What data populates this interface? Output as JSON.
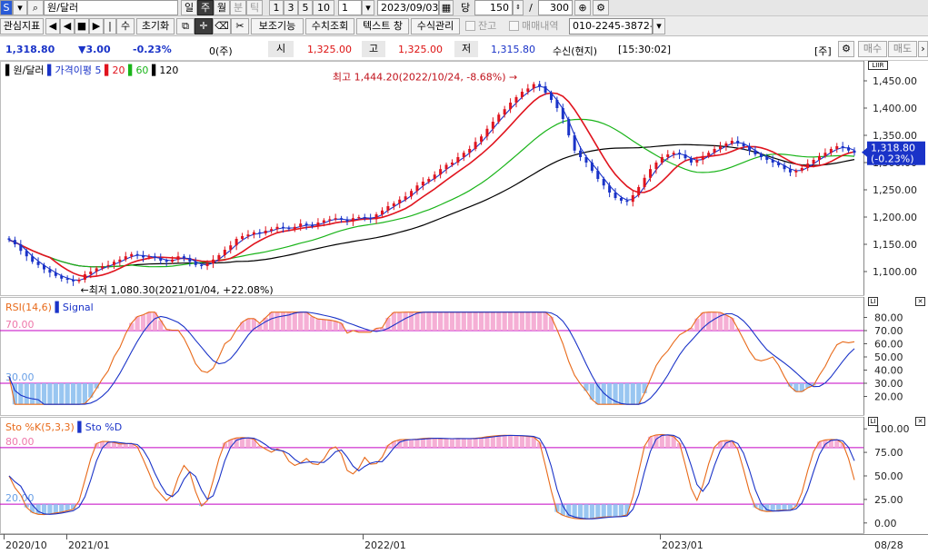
{
  "toolbar1": {
    "left_icon": "S",
    "symbol_value": "원/달러",
    "period_buttons": [
      "일",
      "주",
      "월",
      "분",
      "틱"
    ],
    "interval_buttons": [
      "1",
      "3",
      "5",
      "10"
    ],
    "interval_value": "1",
    "date_value": "2023/09/03",
    "calendar_icon": "calendar-icon",
    "dang_label": "당",
    "count_value": "150",
    "slash": "/",
    "max_value": "300",
    "zoom_icon": "zoom-icon",
    "settings_icon": "gear-icon"
  },
  "toolbar2": {
    "interest_label": "관심지표",
    "nav_first": "◀",
    "nav_prev": "◀",
    "nav_stop": "■",
    "nav_next": "▶",
    "nav_sep": "|",
    "su_label": "수",
    "reset_label": "초기화",
    "assist_label": "보조기능",
    "numeric_label": "수치조회",
    "text_label": "텍스트 창",
    "numeric_manage_label": "수식관리",
    "check1": "잔고",
    "check2": "매매내역",
    "account_value": "010-2245-3872-0"
  },
  "price_bar": {
    "current": "1,318.80",
    "change": "▼3.00",
    "change_pct": "-0.23%",
    "volume": "0(주)",
    "open_label": "시",
    "open": "1,325.00",
    "high_label": "고",
    "high": "1,325.00",
    "low_label": "저",
    "low": "1,315.80",
    "status": "수신(현지)",
    "time": "[15:30:02]",
    "unit": "[주]",
    "buy_label": "매수",
    "sell_label": "매도"
  },
  "price_panel": {
    "legend_name": "원/달러",
    "legend_ma_label": "가격이평",
    "ma_periods": [
      "5",
      "20",
      "60",
      "120"
    ],
    "ma_colors": [
      "#1a33c8",
      "#e0141e",
      "#19b419",
      "#000000"
    ],
    "y_ticks": [
      "1,450.00",
      "1,400.00",
      "1,350.00",
      "1,300.00",
      "1,250.00",
      "1,200.00",
      "1,150.00",
      "1,100.00"
    ],
    "current_tag": "1,318.80",
    "current_tag_pct": "(-0.23%)",
    "high_annot": "최고 1,444.20(2022/10/24, -8.68%)",
    "low_annot": "최저 1,080.30(2021/01/04, +22.08%)",
    "scale_btn": "LIIR"
  },
  "rsi_panel": {
    "legend_name": "RSI(14,6)",
    "legend_signal": "Signal",
    "level_high": "70.00",
    "level_low": "30.00",
    "y_ticks": [
      "80.00",
      "70.00",
      "60.00",
      "50.00",
      "40.00",
      "30.00",
      "20.00"
    ]
  },
  "sto_panel": {
    "legend_k": "Sto %K(5,3,3)",
    "legend_d": "Sto %D",
    "level_high": "80.00",
    "level_low": "20.00",
    "y_ticks": [
      "100.00",
      "75.00",
      "50.00",
      "25.00",
      "0.00"
    ]
  },
  "x_axis": {
    "labels": [
      "2020/10",
      "2021/01",
      "2022/01",
      "2023/01"
    ],
    "last_label": "08/28"
  },
  "chart_data": {
    "type": "candlestick",
    "period": "weekly",
    "x_start": "2020/10",
    "x_end": "2023/08/28",
    "close": [
      1158,
      1150,
      1138,
      1128,
      1118,
      1112,
      1104,
      1098,
      1092,
      1087,
      1085,
      1082,
      1085,
      1095,
      1100,
      1106,
      1110,
      1112,
      1118,
      1122,
      1128,
      1132,
      1130,
      1126,
      1128,
      1125,
      1120,
      1118,
      1122,
      1128,
      1125,
      1118,
      1112,
      1110,
      1115,
      1122,
      1130,
      1140,
      1148,
      1160,
      1165,
      1168,
      1172,
      1170,
      1175,
      1178,
      1182,
      1180,
      1178,
      1182,
      1188,
      1185,
      1183,
      1190,
      1194,
      1196,
      1198,
      1195,
      1192,
      1198,
      1200,
      1198,
      1196,
      1205,
      1212,
      1220,
      1225,
      1232,
      1238,
      1248,
      1258,
      1265,
      1270,
      1278,
      1288,
      1296,
      1300,
      1310,
      1318,
      1325,
      1338,
      1348,
      1362,
      1375,
      1388,
      1398,
      1410,
      1420,
      1430,
      1436,
      1444,
      1440,
      1428,
      1415,
      1400,
      1380,
      1350,
      1322,
      1310,
      1300,
      1285,
      1270,
      1258,
      1245,
      1235,
      1230,
      1228,
      1240,
      1255,
      1272,
      1288,
      1300,
      1310,
      1315,
      1318,
      1315,
      1308,
      1300,
      1305,
      1312,
      1318,
      1325,
      1330,
      1335,
      1340,
      1335,
      1330,
      1322,
      1315,
      1310,
      1305,
      1300,
      1295,
      1288,
      1282,
      1285,
      1290,
      1298,
      1305,
      1312,
      1318,
      1325,
      1330,
      1328,
      1322,
      1318
    ],
    "ma_series": [
      {
        "name": "5",
        "color": "#1a33c8"
      },
      {
        "name": "20",
        "color": "#e0141e"
      },
      {
        "name": "60",
        "color": "#19b419"
      },
      {
        "name": "120",
        "color": "#000000"
      }
    ],
    "ylim": [
      1060,
      1470
    ],
    "high": {
      "value": 1444.2,
      "date": "2022/10/24"
    },
    "low": {
      "value": 1080.3,
      "date": "2021/01/04"
    },
    "rsi": {
      "title": "RSI(14,6)",
      "ylim": [
        10,
        90
      ],
      "levels": [
        70,
        30
      ]
    },
    "stochastic": {
      "title": "Sto %K(5,3,3)",
      "ylim": [
        -5,
        105
      ],
      "levels": [
        80,
        20
      ]
    }
  }
}
